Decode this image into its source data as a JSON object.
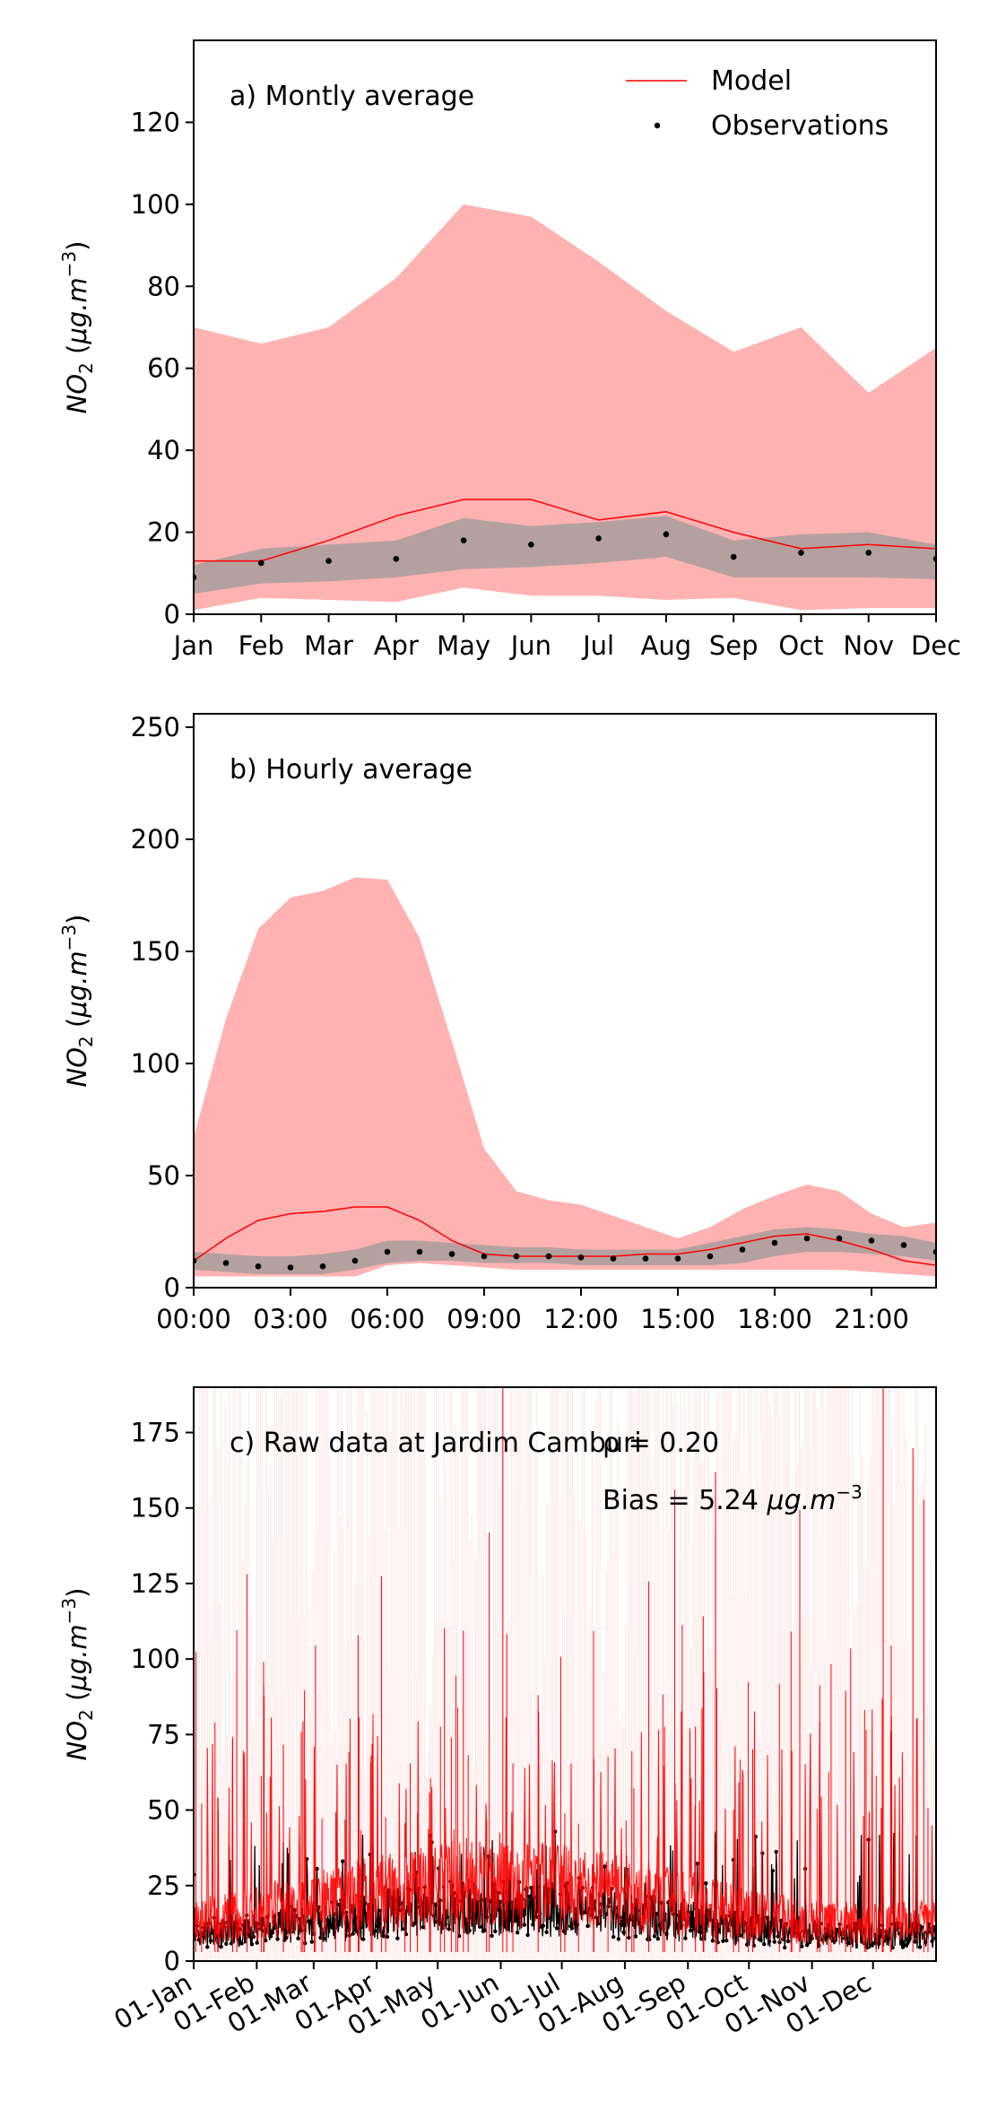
{
  "colors": {
    "model_line": "#ff0000",
    "model_band": "#ffb2b2",
    "obs_band": "#999999",
    "observations": "#000000",
    "raw_spread": "#ffcccc"
  },
  "legend": {
    "model": "Model",
    "observations": "Observations"
  },
  "ylabel": {
    "species": "NO",
    "subscript": "2",
    "unit_open": " (",
    "unit_core": "μg.m",
    "unit_exp": "−3",
    "unit_close": ")"
  },
  "chart_data": [
    {
      "type": "line",
      "title": "a) Montly average",
      "xtick_labels": [
        "Jan",
        "Feb",
        "Mar",
        "Apr",
        "May",
        "Jun",
        "Jul",
        "Aug",
        "Sep",
        "Oct",
        "Nov",
        "Dec"
      ],
      "ylim": [
        0,
        140
      ],
      "yticks": [
        "0",
        "20",
        "40",
        "60",
        "80",
        "100",
        "120"
      ],
      "legend_position": "top-right",
      "series": [
        {
          "name": "Model",
          "values": [
            13,
            13,
            18,
            24,
            28,
            28,
            23,
            25,
            20,
            16,
            17,
            16
          ]
        },
        {
          "name": "Observations",
          "values": [
            9,
            12.5,
            13,
            13.5,
            18,
            17,
            18.5,
            19.5,
            14,
            15,
            15,
            13.5
          ]
        }
      ],
      "model_band": {
        "upper": [
          70,
          66,
          70,
          82,
          100,
          97,
          86,
          74,
          64,
          70,
          54,
          65
        ],
        "lower": [
          1,
          4,
          3.5,
          3,
          6.5,
          4.5,
          4.5,
          3.5,
          4,
          1,
          1.5,
          1.5
        ]
      },
      "obs_band": {
        "upper": [
          12,
          16,
          17,
          18,
          23.5,
          21.5,
          22.5,
          24,
          18,
          19.5,
          20,
          17
        ],
        "lower": [
          5,
          7.5,
          8,
          9,
          11,
          11.5,
          12.5,
          14,
          9,
          9,
          9,
          8.5
        ]
      }
    },
    {
      "type": "line",
      "title": "b) Hourly average",
      "xtick_labels": [
        "00:00",
        "03:00",
        "06:00",
        "09:00",
        "12:00",
        "15:00",
        "18:00",
        "21:00"
      ],
      "ylim": [
        0,
        256
      ],
      "yticks": [
        "0",
        "50",
        "100",
        "150",
        "200",
        "250"
      ],
      "series": [
        {
          "name": "Model",
          "values": [
            12,
            22,
            30,
            33,
            34,
            36,
            36,
            30,
            21,
            15,
            14,
            14,
            14,
            14,
            15,
            15,
            17,
            20,
            23,
            24,
            21,
            17,
            12,
            10
          ]
        },
        {
          "name": "Observations",
          "values": [
            12,
            11,
            9.5,
            9,
            9.5,
            12,
            16,
            16,
            15,
            14,
            14,
            14,
            13.5,
            13,
            13,
            13,
            14,
            17,
            20,
            22,
            22,
            21,
            19,
            16
          ]
        }
      ],
      "model_band": {
        "upper": [
          67,
          120,
          160,
          174,
          177,
          183,
          182,
          156,
          110,
          62,
          43,
          39,
          37,
          32,
          27,
          22,
          27,
          35,
          41,
          46,
          43,
          33,
          27,
          29
        ],
        "lower": [
          5,
          5,
          5,
          5,
          5,
          5,
          10,
          11,
          10,
          9,
          8,
          8,
          8,
          8,
          8,
          8,
          8,
          8,
          8,
          8,
          8,
          7,
          6,
          5
        ]
      },
      "obs_band": {
        "upper": [
          16,
          15,
          14,
          14,
          15,
          17,
          21,
          21,
          20,
          19,
          18,
          18,
          17,
          17,
          17,
          17,
          20,
          23,
          26,
          27,
          26,
          24,
          23,
          20
        ],
        "lower": [
          8,
          7,
          6,
          6,
          6,
          8,
          11,
          12,
          12,
          11,
          11,
          11,
          10,
          10,
          10,
          10,
          10,
          11,
          14,
          16,
          16,
          15,
          14,
          12
        ]
      }
    },
    {
      "type": "line",
      "title": "c) Raw data at Jardim Camburi",
      "xtick_labels": [
        "01-Jan",
        "01-Feb",
        "01-Mar",
        "01-Apr",
        "01-May",
        "01-Jun",
        "01-Jul",
        "01-Aug",
        "01-Sep",
        "01-Oct",
        "01-Nov",
        "01-Dec"
      ],
      "ylim": [
        0,
        190
      ],
      "yticks": [
        "0",
        "25",
        "50",
        "75",
        "100",
        "125",
        "150",
        "175"
      ],
      "stats": {
        "rho_label": "ρ = 0.20",
        "bias_text": "Bias = 5.24 ",
        "bias_unit": "μg.m",
        "bias_exp": "−3"
      },
      "series": [
        {
          "name": "Model",
          "values": []
        },
        {
          "name": "Observations",
          "values": []
        }
      ]
    }
  ]
}
